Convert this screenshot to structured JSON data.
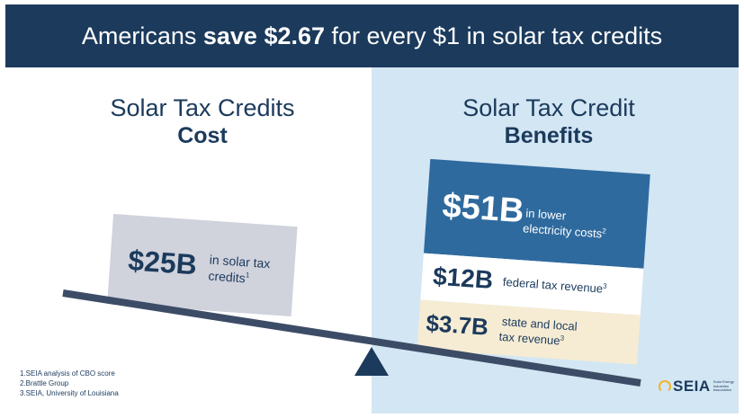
{
  "title": {
    "prefix": "Americans ",
    "bold": "save $2.67",
    "suffix": " for every $1 in solar tax credits"
  },
  "cost": {
    "heading": "Solar Tax Credits",
    "subheading": "Cost",
    "box": {
      "amount": "$25B",
      "line1": "in solar tax",
      "line2": "credits",
      "sup": "1"
    }
  },
  "benefits": {
    "heading": "Solar Tax Credit",
    "subheading": "Benefits",
    "items": [
      {
        "amount": "$51B",
        "line1": "in lower",
        "line2": "electricity costs",
        "sup": "2"
      },
      {
        "amount": "$12B",
        "line1": "federal tax revenue",
        "sup": "3"
      },
      {
        "amount": "$3.7B",
        "line1": "state and local",
        "line2": "tax revenue",
        "sup": "3"
      }
    ]
  },
  "footnotes": [
    "1.SEIA analysis of CBO score",
    "2.Brattle Group",
    "3.SEIA, University of Louisiana"
  ],
  "logo": {
    "mark": "SEIA",
    "tagline": "Solar Energy Industries Association"
  },
  "colors": {
    "navy": "#1b3a5c",
    "light_blue": "#d3e6f3",
    "box_blue": "#2e6a9e",
    "box_gray": "#d0d2dc",
    "box_cream": "#f6ecd4",
    "beam": "#3d4c66"
  }
}
